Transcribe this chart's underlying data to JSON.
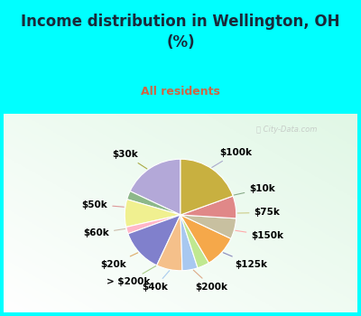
{
  "title": "Income distribution in Wellington, OH\n(%)",
  "subtitle": "All residents",
  "labels": [
    "$100k",
    "$10k",
    "$75k",
    "$150k",
    "$125k",
    "$200k",
    "$40k",
    "> $200k",
    "$20k",
    "$60k",
    "$50k",
    "$30k"
  ],
  "sizes": [
    18.0,
    2.5,
    8.0,
    2.0,
    12.5,
    7.5,
    4.5,
    3.5,
    9.5,
    6.0,
    6.5,
    19.5
  ],
  "colors": [
    "#b3a8d8",
    "#8db88a",
    "#f0f090",
    "#ffb6c8",
    "#8080cc",
    "#f5c08a",
    "#a8c8f0",
    "#c0e890",
    "#f5a84a",
    "#c8c0a0",
    "#e08888",
    "#c8b040"
  ],
  "bg_cyan": "#00ffff",
  "bg_chart_color1": "#f0fff8",
  "bg_chart_color2": "#c0f0d8",
  "title_color": "#1a2a3a",
  "subtitle_color": "#cc6644",
  "label_color": "#000000",
  "label_fontsize": 7.5,
  "title_fontsize": 12,
  "subtitle_fontsize": 9,
  "watermark_color": "#bbbbbb",
  "line_colors": [
    "#aaaacc",
    "#88aa88",
    "#cccc88",
    "#ffaaaa",
    "#8888bb",
    "#ddaa88",
    "#aaccee",
    "#aacc88",
    "#ddaa66",
    "#ccbbaa",
    "#dd9999",
    "#aaaa44"
  ],
  "startangle": 90
}
